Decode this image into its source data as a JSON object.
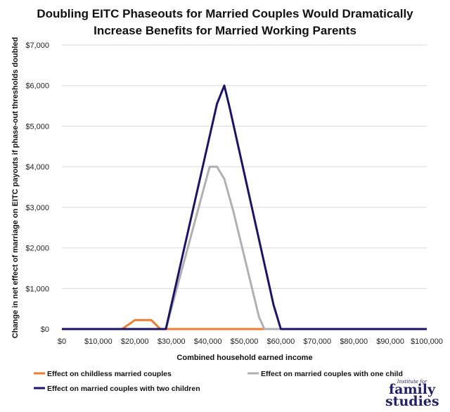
{
  "chart_data": {
    "type": "line",
    "title_lines": [
      "Doubling EITC Phaseouts for Married Couples Would Dramatically",
      "Increase Benefits for Married Working Parents"
    ],
    "xlabel": "Combined household earned income",
    "ylabel": "Change in net effect of marriage on EITC payouts if phase-out thresholds doubled",
    "xlim": [
      0,
      100000
    ],
    "ylim": [
      0,
      7000
    ],
    "x_ticks": [
      "$0",
      "$10,000",
      "$20,000",
      "$30,000",
      "$40,000",
      "$50,000",
      "$60,000",
      "$70,000",
      "$80,000",
      "$90,000",
      "$100,000"
    ],
    "y_ticks": [
      "$0",
      "$1,000",
      "$2,000",
      "$3,000",
      "$4,000",
      "$5,000",
      "$6,000",
      "$7,000"
    ],
    "grid": true,
    "legend_position": "bottom",
    "series": [
      {
        "name": "Effect on childless married couples",
        "color": "#ED7D31",
        "points": [
          [
            0,
            0
          ],
          [
            16500,
            0
          ],
          [
            20000,
            220
          ],
          [
            24500,
            220
          ],
          [
            27000,
            0
          ],
          [
            56000,
            0
          ]
        ]
      },
      {
        "name": "Effect on married couples with one child",
        "color": "#B0B0B0",
        "points": [
          [
            28500,
            0
          ],
          [
            40500,
            4000
          ],
          [
            42500,
            4000
          ],
          [
            44500,
            3700
          ],
          [
            47000,
            2900
          ],
          [
            54000,
            300
          ],
          [
            55500,
            0
          ],
          [
            61000,
            0
          ]
        ]
      },
      {
        "name": "Effect on married couples with two children",
        "color": "#1B1464",
        "points": [
          [
            0,
            0
          ],
          [
            28500,
            0
          ],
          [
            42500,
            5550
          ],
          [
            44500,
            6000
          ],
          [
            46000,
            5450
          ],
          [
            58000,
            600
          ],
          [
            60000,
            0
          ],
          [
            100000,
            0
          ]
        ]
      }
    ]
  },
  "logo": {
    "institute": "Institute for",
    "line1": "family",
    "line2": "studies"
  }
}
